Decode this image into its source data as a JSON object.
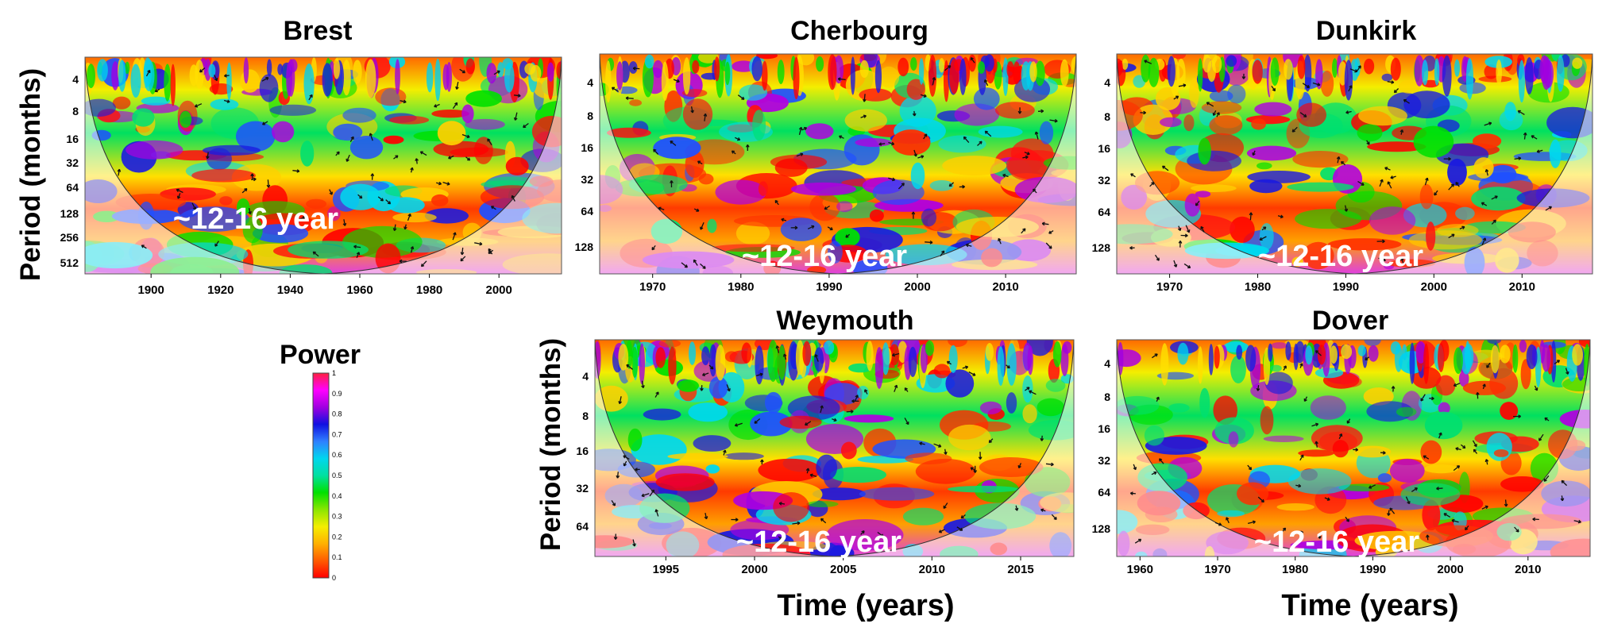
{
  "colors": {
    "scale": [
      "#ff0000",
      "#ff5a00",
      "#ffb000",
      "#f4ee00",
      "#8be600",
      "#00e000",
      "#00e0a0",
      "#00d6ee",
      "#2f7fff",
      "#1010e0",
      "#a000e0",
      "#ff00ff",
      "#ff2040"
    ],
    "arrow": "#111111",
    "annotation": "#ffffff",
    "pale_overlay": "rgba(255,255,255,0.55)"
  },
  "colorbar": {
    "title": "Power",
    "ticks": [
      "1",
      "0.9",
      "0.8",
      "0.7",
      "0.6",
      "0.5",
      "0.4",
      "0.3",
      "0.2",
      "0.1",
      "0"
    ]
  },
  "axis_titles": {
    "period_top": "Period (months)",
    "period_bottom": "Period (months)",
    "time_left": "Time (years)",
    "time_right": "Time (years)"
  },
  "chart_data": [
    {
      "type": "heatmap",
      "title": "Brest",
      "xlabel": "",
      "ylabel": "Period (months)",
      "x_ticks": [
        "1900",
        "1920",
        "1940",
        "1960",
        "1980",
        "2000"
      ],
      "y_ticks": [
        "4",
        "8",
        "16",
        "32",
        "64",
        "128",
        "256",
        "512"
      ],
      "annotation": "~12-16 year",
      "xlim": [
        1881,
        2018
      ],
      "colorbar_range": [
        0,
        1
      ]
    },
    {
      "type": "heatmap",
      "title": "Cherbourg",
      "xlabel": "",
      "ylabel": "",
      "x_ticks": [
        "1970",
        "1980",
        "1990",
        "2000",
        "2010"
      ],
      "y_ticks": [
        "4",
        "8",
        "16",
        "32",
        "64",
        "128"
      ],
      "annotation": "~12-16 year",
      "xlim": [
        1964,
        2018
      ],
      "colorbar_range": [
        0,
        1
      ]
    },
    {
      "type": "heatmap",
      "title": "Dunkirk",
      "xlabel": "",
      "ylabel": "",
      "x_ticks": [
        "1970",
        "1980",
        "1990",
        "2000",
        "2010"
      ],
      "y_ticks": [
        "4",
        "8",
        "16",
        "32",
        "64",
        "128"
      ],
      "annotation": "~12-16 year",
      "xlim": [
        1964,
        2018
      ],
      "colorbar_range": [
        0,
        1
      ]
    },
    {
      "type": "heatmap",
      "title": "Weymouth",
      "xlabel": "Time (years)",
      "ylabel": "Period (months)",
      "x_ticks": [
        "1995",
        "2000",
        "2005",
        "2010",
        "2015"
      ],
      "y_ticks": [
        "4",
        "8",
        "16",
        "32",
        "64"
      ],
      "annotation": "~12-16 year",
      "xlim": [
        1991,
        2018
      ],
      "colorbar_range": [
        0,
        1
      ]
    },
    {
      "type": "heatmap",
      "title": "Dover",
      "xlabel": "Time (years)",
      "ylabel": "",
      "x_ticks": [
        "1960",
        "1970",
        "1980",
        "1990",
        "2000",
        "2010"
      ],
      "y_ticks": [
        "4",
        "8",
        "16",
        "32",
        "64",
        "128"
      ],
      "annotation": "~12-16 year",
      "xlim": [
        1957,
        2018
      ],
      "colorbar_range": [
        0,
        1
      ]
    }
  ]
}
